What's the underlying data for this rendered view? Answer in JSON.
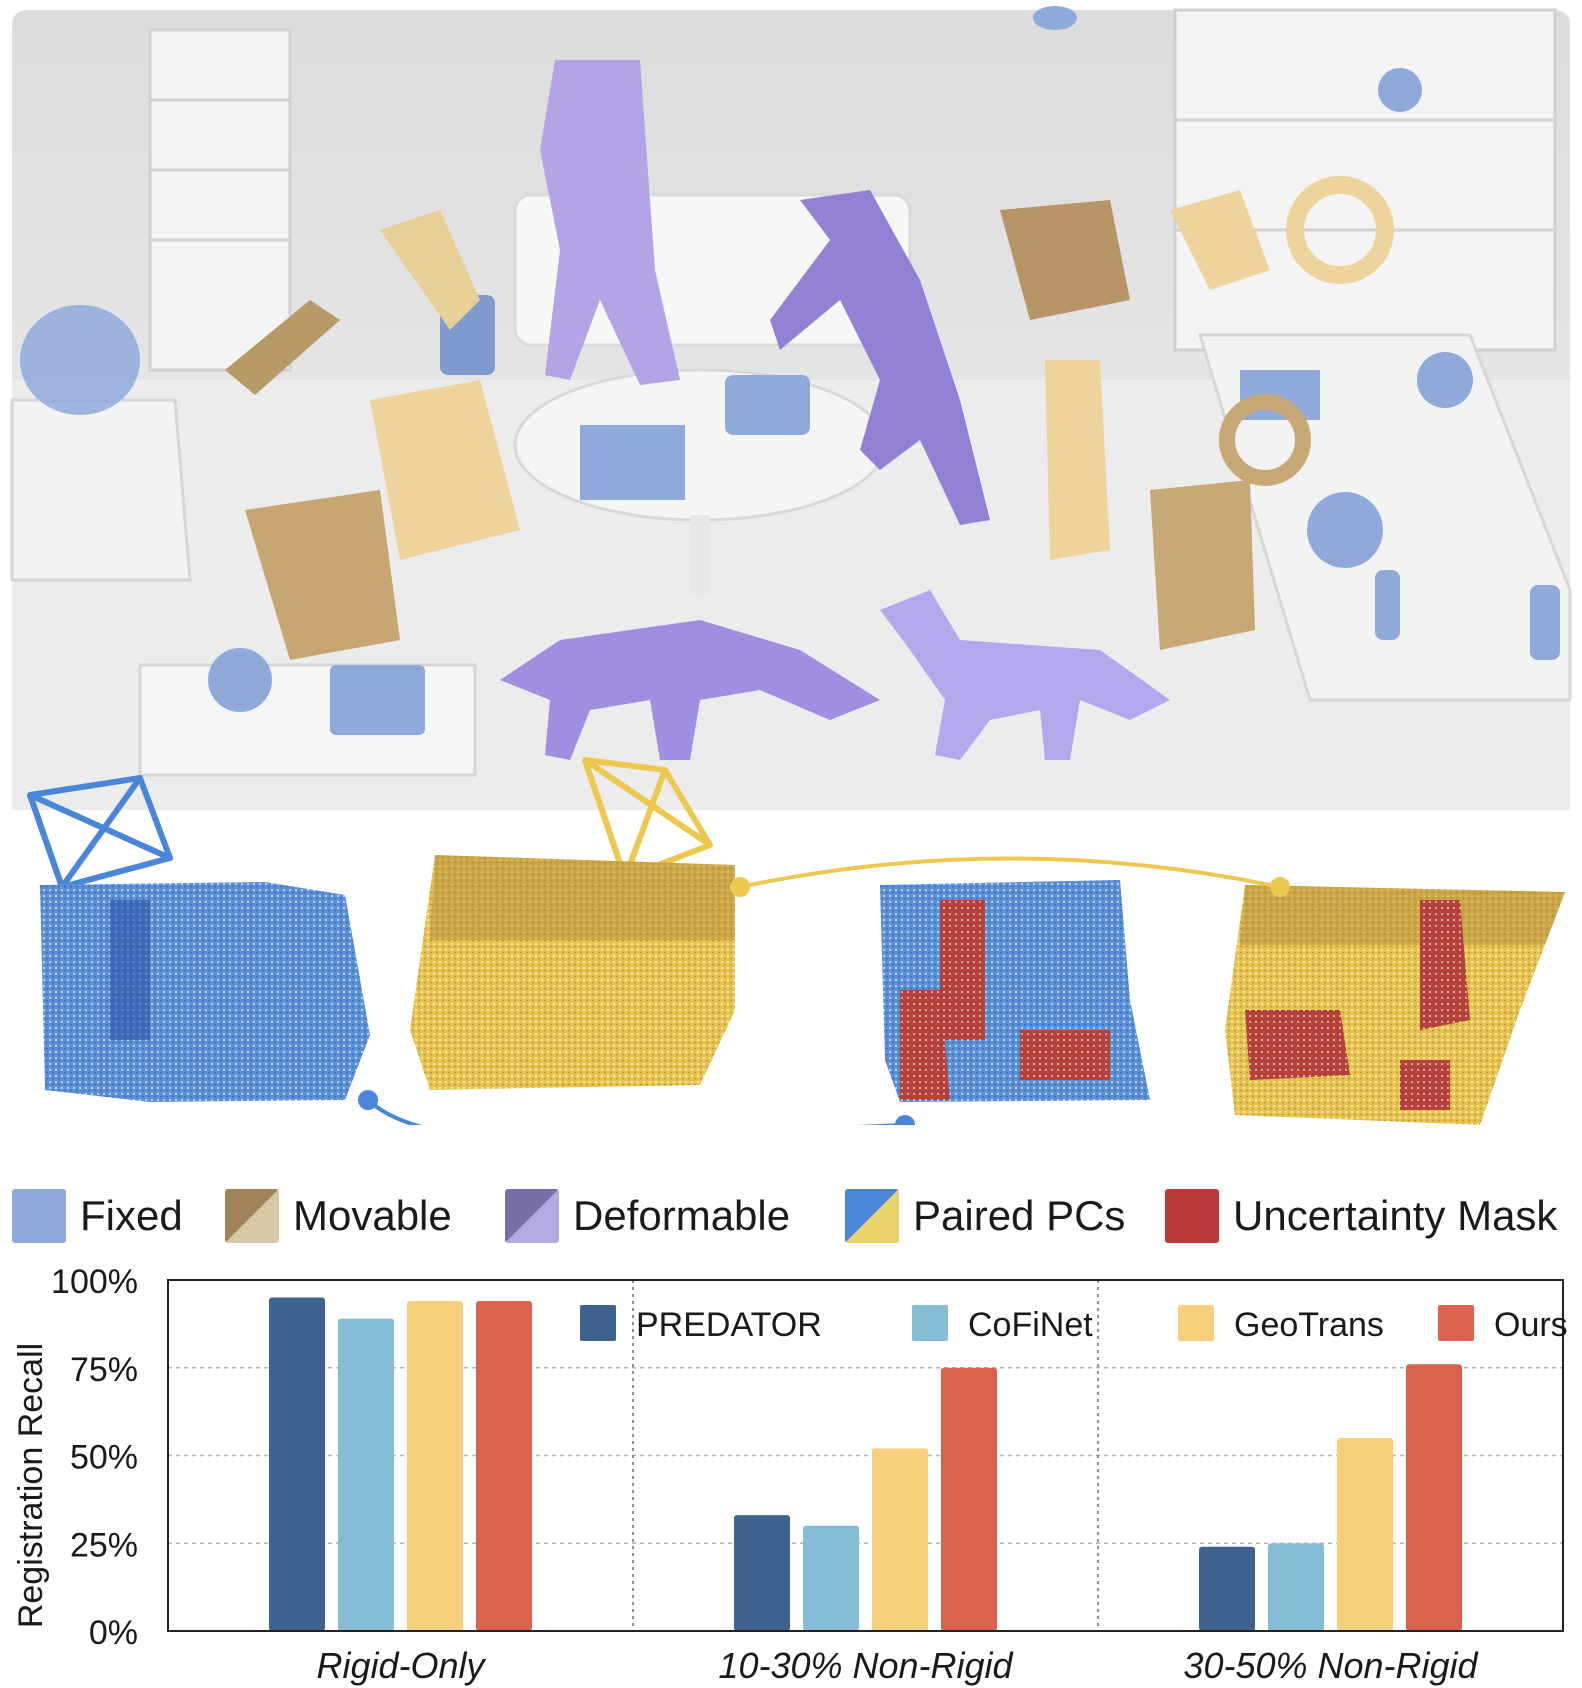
{
  "legend": {
    "items": [
      {
        "label": "Fixed",
        "colors": [
          "#8ea9da",
          "#8ea9da"
        ],
        "icon": "fixed-swatch-icon"
      },
      {
        "label": "Movable",
        "colors": [
          "#a0825a",
          "#d8c9a6"
        ],
        "icon": "movable-swatch-icon"
      },
      {
        "label": "Deformable",
        "colors": [
          "#7a6ea8",
          "#b4aae0"
        ],
        "icon": "deformable-swatch-icon"
      },
      {
        "label": "Paired PCs",
        "colors": [
          "#4a86d8",
          "#ecd068"
        ],
        "icon": "paired-pcs-swatch-icon"
      },
      {
        "label": "Uncertainty Mask",
        "colors": [
          "#b83a3a",
          "#b83a3a"
        ],
        "icon": "uncertainty-mask-swatch-icon"
      }
    ]
  },
  "chart_data": {
    "type": "bar",
    "categories": [
      "Rigid-Only",
      "10-30% Non-Rigid",
      "30-50% Non-Rigid"
    ],
    "series": [
      {
        "name": "PREDATOR",
        "color": "#3e638e",
        "values": [
          95,
          33,
          24
        ]
      },
      {
        "name": "CoFiNet",
        "color": "#86bdd6",
        "values": [
          89,
          30,
          25
        ]
      },
      {
        "name": "GeoTrans",
        "color": "#f6d07a",
        "values": [
          94,
          52,
          55
        ]
      },
      {
        "name": "Ours",
        "color": "#d9634f",
        "values": [
          94,
          75,
          76
        ]
      }
    ],
    "ylabel": "Registration Recall",
    "ylim": [
      0,
      100
    ],
    "yticks": [
      "0%",
      "25%",
      "50%",
      "75%",
      "100%"
    ],
    "grid": true,
    "legend_position": "top"
  }
}
